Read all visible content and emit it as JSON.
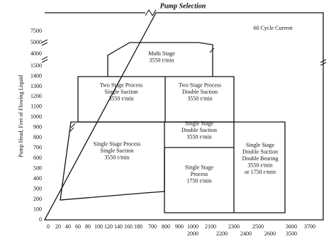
{
  "title": "Pump Selection",
  "note": "60 Cycle Current",
  "y_axis_label": "Pump Head, Feet of Flowing Liquid",
  "y_ticks": [
    7500,
    5000,
    4000,
    1500,
    1400,
    1300,
    1200,
    1100,
    1000,
    900,
    800,
    700,
    600,
    500,
    400,
    300,
    200,
    100,
    0
  ],
  "x_ticks_top": [
    0,
    20,
    40,
    60,
    80,
    100,
    120,
    140,
    160,
    180,
    700,
    800,
    900,
    1000,
    2100,
    2300,
    2500,
    3600,
    3700
  ],
  "x_ticks_bottom": [
    2000,
    2200,
    2400,
    2600,
    3500
  ],
  "regions": [
    {
      "lines": [
        "Multi Stage",
        "3550 r/min"
      ]
    },
    {
      "lines": [
        "Two Stage Process",
        "Single Suction",
        "3550 r/min"
      ]
    },
    {
      "lines": [
        "Two Stage Process",
        "Double Suction",
        "3550 r/min"
      ]
    },
    {
      "lines": [
        "Single Stage Process",
        "Single Suction",
        "3550 r/min"
      ]
    },
    {
      "lines": [
        "Single Stage",
        "Double Suction",
        "3550 r/min"
      ]
    },
    {
      "lines": [
        "Single Stage",
        "Process",
        "1750 r/min"
      ]
    },
    {
      "lines": [
        "Single Stage",
        "Double Suction",
        "Double Bearing",
        "3550 r/min",
        "or 1750 r/min"
      ]
    }
  ]
}
